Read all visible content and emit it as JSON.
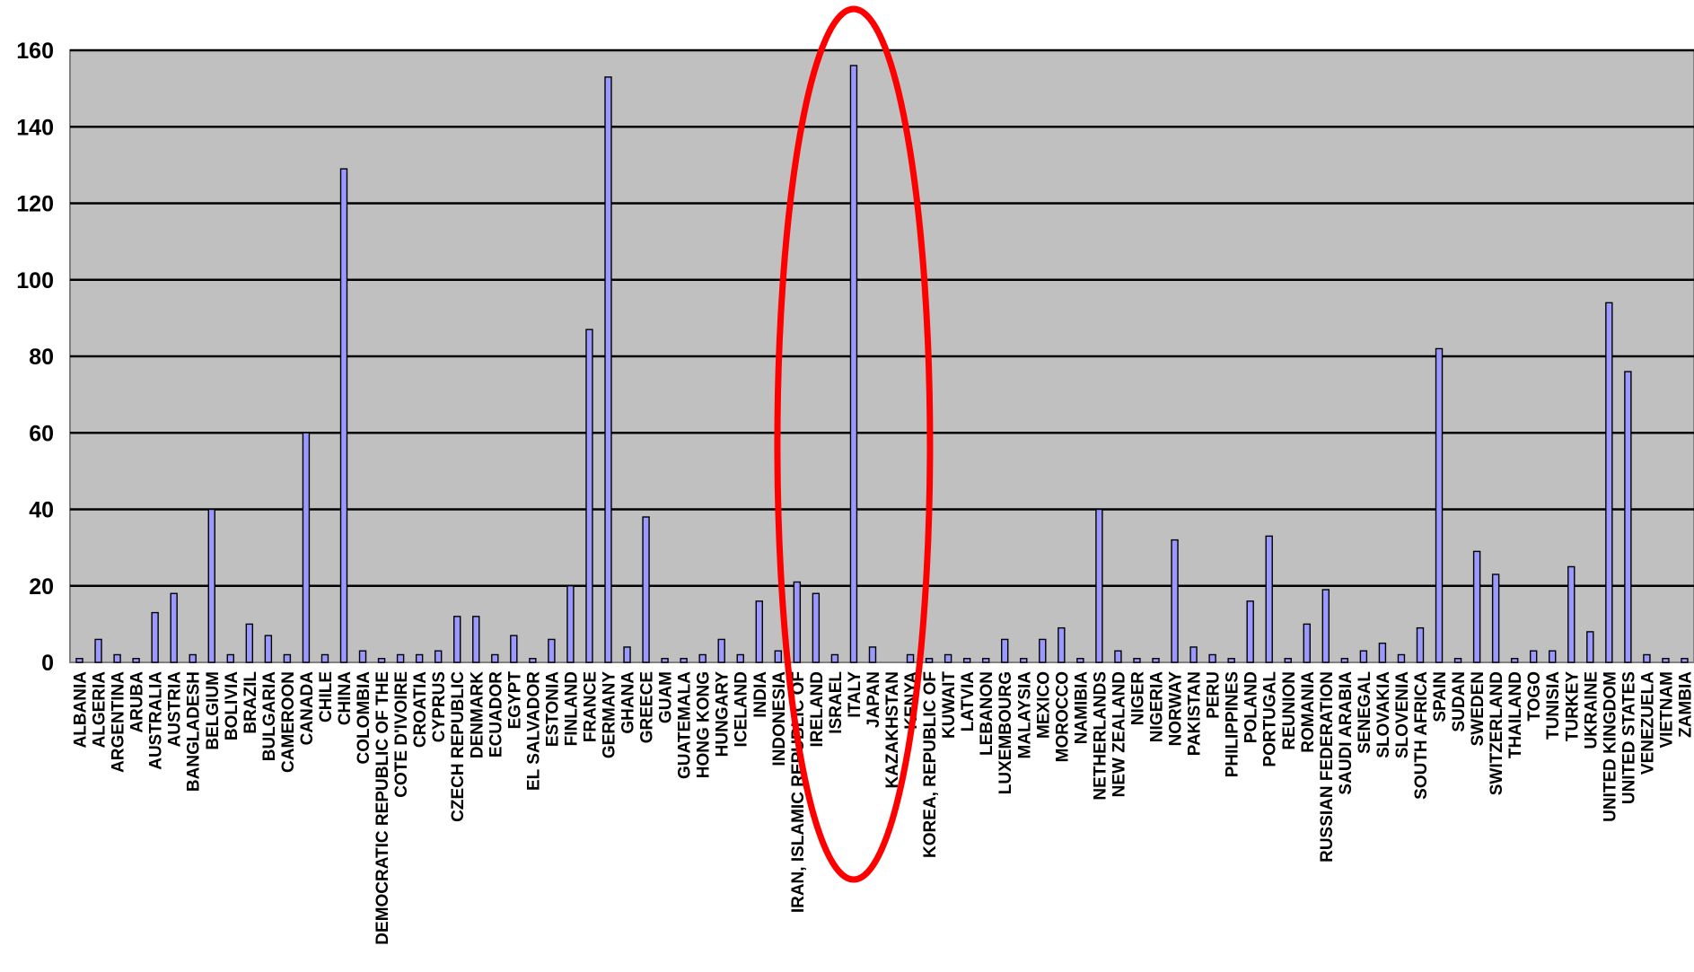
{
  "chart_data": {
    "type": "bar",
    "title": "",
    "xlabel": "",
    "ylabel": "",
    "ylim": [
      0,
      160
    ],
    "yticks": [
      0,
      20,
      40,
      60,
      80,
      100,
      120,
      140,
      160
    ],
    "grid": true,
    "legend": "none",
    "colors": {
      "plot_background": "#C0C0C0",
      "bar_fill": "#9999FF",
      "bar_stroke": "#000000",
      "gridline": "#000000",
      "highlight_ellipse": "#FF0000"
    },
    "annotations": [
      {
        "type": "ellipse",
        "color": "#FF0000",
        "label": "",
        "encloses": [
          "ISRAEL",
          "ITALY"
        ]
      }
    ],
    "categories": [
      "ALBANIA",
      "ALGERIA",
      "ARGENTINA",
      "ARUBA",
      "AUSTRALIA",
      "AUSTRIA",
      "BANGLADESH",
      "BELGIUM",
      "BOLIVIA",
      "BRAZIL",
      "BULGARIA",
      "CAMEROON",
      "CANADA",
      "CHILE",
      "CHINA",
      "COLOMBIA",
      "DEMOCRATIC REPUBLIC OF THE",
      "COTE D'IVOIRE",
      "CROATIA",
      "CYPRUS",
      "CZECH REPUBLIC",
      "DENMARK",
      "ECUADOR",
      "EGYPT",
      "EL SALVADOR",
      "ESTONIA",
      "FINLAND",
      "FRANCE",
      "GERMANY",
      "GHANA",
      "GREECE",
      "GUAM",
      "GUATEMALA",
      "HONG KONG",
      "HUNGARY",
      "ICELAND",
      "INDIA",
      "INDONESIA",
      "IRAN, ISLAMIC REPUBLIC OF",
      "IRELAND",
      "ISRAEL",
      "ITALY",
      "JAPAN",
      "KAZAKHSTAN",
      "KENYA",
      "KOREA, REPUBLIC OF",
      "KUWAIT",
      "LATVIA",
      "LEBANON",
      "LUXEMBOURG",
      "MALAYSIA",
      "MEXICO",
      "MOROCCO",
      "NAMIBIA",
      "NETHERLANDS",
      "NEW ZEALAND",
      "NIGER",
      "NIGERIA",
      "NORWAY",
      "PAKISTAN",
      "PERU",
      "PHILIPPINES",
      "POLAND",
      "PORTUGAL",
      "REUNION",
      "ROMANIA",
      "RUSSIAN FEDERATION",
      "SAUDI ARABIA",
      "SENEGAL",
      "SLOVAKIA",
      "SLOVENIA",
      "SOUTH AFRICA",
      "SPAIN",
      "SUDAN",
      "SWEDEN",
      "SWITZERLAND",
      "THAILAND",
      "TOGO",
      "TUNISIA",
      "TURKEY",
      "UKRAINE",
      "UNITED KINGDOM",
      "UNITED STATES",
      "VENEZUELA",
      "VIETNAM",
      "ZAMBIA"
    ],
    "values": [
      1,
      6,
      2,
      1,
      13,
      18,
      2,
      40,
      2,
      10,
      7,
      2,
      60,
      2,
      129,
      3,
      1,
      2,
      2,
      3,
      12,
      12,
      2,
      7,
      1,
      6,
      20,
      87,
      153,
      4,
      38,
      1,
      1,
      2,
      6,
      2,
      16,
      3,
      21,
      18,
      2,
      156,
      4,
      0,
      2,
      1,
      2,
      1,
      1,
      6,
      1,
      6,
      9,
      1,
      40,
      3,
      1,
      1,
      32,
      4,
      2,
      1,
      16,
      33,
      1,
      10,
      19,
      1,
      3,
      5,
      2,
      9,
      82,
      1,
      29,
      23,
      1,
      3,
      3,
      25,
      8,
      94,
      76,
      2,
      1,
      1
    ]
  }
}
